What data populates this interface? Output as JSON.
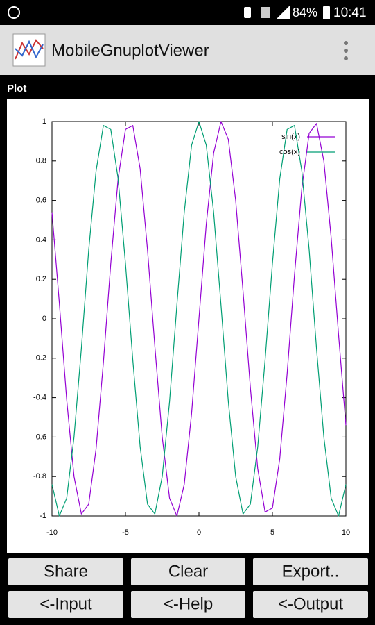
{
  "status_bar": {
    "battery": "84%",
    "time": "10:41"
  },
  "app_bar": {
    "title": "MobileGnuplotViewer"
  },
  "section_label": "Plot",
  "chart_data": {
    "type": "line",
    "x": [
      -10,
      -9.5,
      -9,
      -8.5,
      -8,
      -7.5,
      -7,
      -6.5,
      -6,
      -5.5,
      -5,
      -4.5,
      -4,
      -3.5,
      -3,
      -2.5,
      -2,
      -1.5,
      -1,
      -0.5,
      0,
      0.5,
      1,
      1.5,
      2,
      2.5,
      3,
      3.5,
      4,
      4.5,
      5,
      5.5,
      6,
      6.5,
      7,
      7.5,
      8,
      8.5,
      9,
      9.5,
      10
    ],
    "series": [
      {
        "name": "sin(x)",
        "color": "#9400d3",
        "values": [
          0.54,
          0.08,
          -0.41,
          -0.8,
          -0.99,
          -0.94,
          -0.66,
          -0.22,
          0.28,
          0.71,
          0.96,
          0.98,
          0.76,
          0.35,
          -0.14,
          -0.6,
          -0.91,
          -1,
          -0.84,
          -0.48,
          0,
          0.48,
          0.84,
          1,
          0.91,
          0.6,
          0.14,
          -0.35,
          -0.76,
          -0.98,
          -0.96,
          -0.71,
          -0.28,
          0.22,
          0.66,
          0.94,
          0.99,
          0.8,
          0.41,
          -0.08,
          -0.54
        ]
      },
      {
        "name": "cos(x)",
        "color": "#009e73",
        "values": [
          -0.84,
          -1,
          -0.91,
          -0.6,
          -0.15,
          0.35,
          0.75,
          0.98,
          0.96,
          0.71,
          0.28,
          -0.21,
          -0.65,
          -0.94,
          -0.99,
          -0.8,
          -0.42,
          0.07,
          0.54,
          0.88,
          1,
          0.88,
          0.54,
          0.07,
          -0.42,
          -0.8,
          -0.99,
          -0.94,
          -0.65,
          -0.21,
          0.28,
          0.71,
          0.96,
          0.98,
          0.75,
          0.35,
          -0.15,
          -0.6,
          -0.91,
          -1,
          -0.84
        ]
      }
    ],
    "xlim": [
      -10,
      10
    ],
    "ylim": [
      -1,
      1
    ],
    "xticks": [
      -10,
      -5,
      0,
      5,
      10
    ],
    "yticks": [
      -1,
      -0.8,
      -0.6,
      -0.4,
      -0.2,
      0,
      0.2,
      0.4,
      0.6,
      0.8,
      1
    ],
    "legend": "top-right"
  },
  "buttons": [
    [
      "Share",
      "Clear",
      "Export.."
    ],
    [
      "<-Input",
      "<-Help",
      "<-Output"
    ]
  ]
}
